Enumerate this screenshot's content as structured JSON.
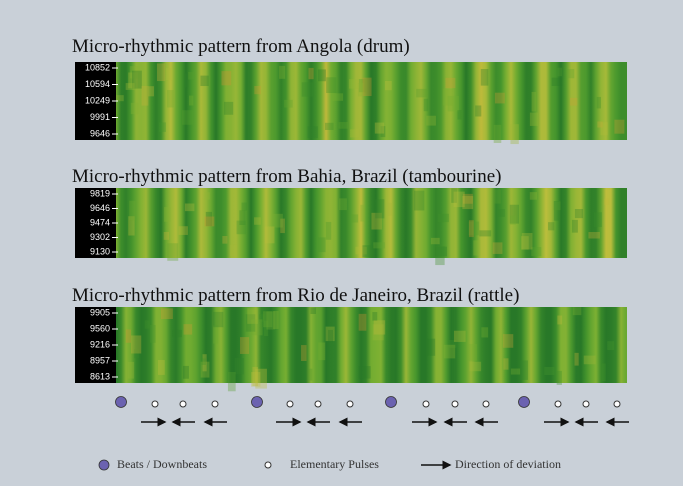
{
  "panels": [
    {
      "title": "Micro-rhythmic pattern from Angola (drum)",
      "labels": [
        10852,
        10594,
        10249,
        9991,
        9646
      ]
    },
    {
      "title": "Micro-rhythmic pattern from Bahia, Brazil (tambourine)",
      "labels": [
        9819,
        9646,
        9474,
        9302,
        9130
      ]
    },
    {
      "title": "Micro-rhythmic pattern from Rio de Janeiro, Brazil (rattle)",
      "labels": [
        9905,
        9560,
        9216,
        8957,
        8613
      ]
    }
  ],
  "legend": {
    "beats": "Beats / Downbeats",
    "pulses": "Elementary Pulses",
    "direction": "Direction of deviation"
  }
}
